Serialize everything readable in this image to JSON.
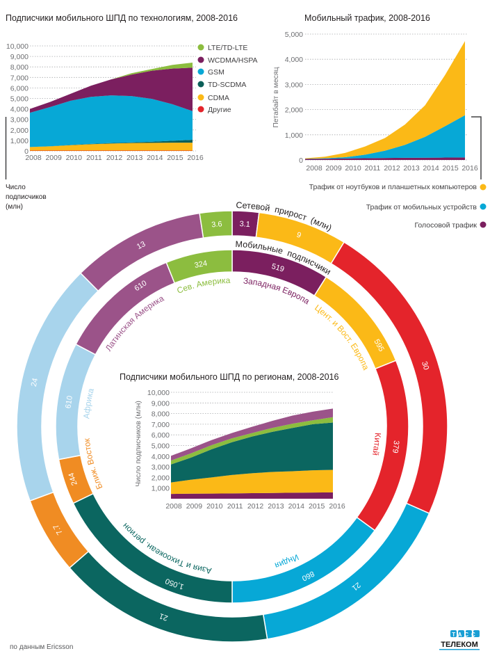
{
  "colors": {
    "lte": "#8cbd3f",
    "wcdma": "#7b1f5f",
    "gsm": "#07a8d6",
    "tdscdma": "#0b5f58",
    "cdma": "#fbb917",
    "other": "#e4242b",
    "laptop": "#fbb917",
    "mobile": "#07a8d6",
    "voice": "#7b1f5f",
    "w_europe": "#7b1f5f",
    "ce_europe": "#fbb917",
    "china": "#e4242b",
    "india": "#07a8d6",
    "apac": "#0b6660",
    "mideast": "#f08c23",
    "africa": "#a8d4ec",
    "latam": "#9b5389",
    "n_america": "#8cbd3f"
  },
  "chart_data": [
    {
      "type": "area",
      "stacked": true,
      "title": "Подписчики мобильного ШПД по технологиям, 2008-2016",
      "ylabel_lines": [
        "Число",
        "подписчиков",
        "(млн)"
      ],
      "categories": [
        "2008",
        "2009",
        "2010",
        "2011",
        "2012",
        "2013",
        "2014",
        "2015",
        "2016"
      ],
      "ylim": [
        0,
        10000
      ],
      "ytick_labels": [
        "0",
        "1,000",
        "2,000",
        "3,000",
        "4,000",
        "5,000",
        "6,000",
        "7,000",
        "8,000",
        "9,000",
        "10,000"
      ],
      "grid": true,
      "legend_placement": "right",
      "series": [
        {
          "name": "Другие",
          "color": "#e4242b",
          "values": [
            30,
            30,
            30,
            30,
            30,
            30,
            30,
            30,
            30
          ]
        },
        {
          "name": "CDMA",
          "color": "#fbb917",
          "values": [
            345,
            410,
            520,
            610,
            670,
            720,
            740,
            760,
            760
          ]
        },
        {
          "name": "TD-SCDMA",
          "color": "#0b5f58",
          "values": [
            0,
            10,
            20,
            30,
            50,
            65,
            110,
            180,
            270
          ]
        },
        {
          "name": "GSM",
          "color": "#07a8d6",
          "values": [
            3255,
            3730,
            4210,
            4480,
            4540,
            4405,
            4080,
            3480,
            2730
          ]
        },
        {
          "name": "WCDMA/HSPA",
          "color": "#7b1f5f",
          "values": [
            370,
            490,
            660,
            1060,
            1520,
            2050,
            2680,
            3390,
            4140
          ]
        },
        {
          "name": "LTE/TD-LTE",
          "color": "#8cbd3f",
          "values": [
            0,
            0,
            0,
            0,
            0,
            130,
            160,
            350,
            480
          ]
        }
      ]
    },
    {
      "type": "area",
      "stacked": true,
      "title": "Мобильный трафик, 2008-2016",
      "ylabel": "Петабайт в месяц",
      "categories": [
        "2008",
        "2009",
        "2010",
        "2011",
        "2012",
        "2013",
        "2014",
        "2015",
        "2016"
      ],
      "ylim": [
        0,
        5000
      ],
      "ytick_labels": [
        "0",
        "1,000",
        "2,000",
        "3,000",
        "4,000",
        "5,000"
      ],
      "grid": true,
      "legend_placement": "bottom-right",
      "series": [
        {
          "name": "Голосовой трафик",
          "color": "#7b1f5f",
          "values": [
            40,
            50,
            60,
            70,
            80,
            85,
            90,
            95,
            100
          ]
        },
        {
          "name": "Трафик от мобильных устройств",
          "color": "#07a8d6",
          "values": [
            10,
            20,
            50,
            140,
            290,
            515,
            830,
            1245,
            1680
          ]
        },
        {
          "name": "Трафик от ноутбуков и планшетных  компьютеров",
          "color": "#fbb917",
          "values": [
            15,
            60,
            170,
            325,
            505,
            810,
            1250,
            2030,
            2940
          ]
        }
      ]
    },
    {
      "type": "pie",
      "subtype": "donut-rings",
      "rings": [
        {
          "title": "Мобильные подписчики",
          "slices": [
            {
              "region": "Западная Европа",
              "label": "519",
              "value": 519,
              "color": "#7b1f5f"
            },
            {
              "region": "Цент. и Вост. Европа",
              "label": "595",
              "value": 595,
              "color": "#fbb917"
            },
            {
              "region": "Китай",
              "label": "379",
              "value": 379,
              "color": "#e4242b"
            },
            {
              "region": "Индия",
              "label": "860",
              "value": 860,
              "color": "#07a8d6"
            },
            {
              "region": "Азия и Тихоокеан. регион",
              "label": "1,050",
              "value": 1050,
              "color": "#0b6660"
            },
            {
              "region": "Ближ. Восток",
              "label": "244",
              "value": 244,
              "color": "#f08c23"
            },
            {
              "region": "Африка",
              "label": "610",
              "value": 610,
              "color": "#a8d4ec"
            },
            {
              "region": "Латинская Америка",
              "label": "610",
              "value": 610,
              "color": "#9b5389"
            },
            {
              "region": "Сев. Америка",
              "label": "324",
              "value": 324,
              "color": "#8cbd3f"
            }
          ]
        },
        {
          "title": "Сетевой прирост (млн)",
          "slices": [
            {
              "label": "3.1",
              "value": 3.1,
              "color": "#7b1f5f"
            },
            {
              "label": "9",
              "value": 9,
              "color": "#fbb917"
            },
            {
              "label": "30",
              "value": 30,
              "color": "#e4242b"
            },
            {
              "label": "21",
              "value": 21,
              "color": "#07a8d6"
            },
            {
              "label": "21",
              "value": 21,
              "color": "#0b6660"
            },
            {
              "label": "7.7",
              "value": 7.7,
              "color": "#f08c23"
            },
            {
              "label": "24",
              "value": 24,
              "color": "#a8d4ec"
            },
            {
              "label": "13",
              "value": 13,
              "color": "#9b5389"
            },
            {
              "label": "3.6",
              "value": 3.6,
              "color": "#8cbd3f"
            }
          ]
        }
      ]
    },
    {
      "type": "area",
      "stacked": true,
      "title": "Подписчики мобильного ШПД по регионам, 2008-2016",
      "ylabel": "Число подписчиков (млн)",
      "categories": [
        "2008",
        "2009",
        "2010",
        "2011",
        "2012",
        "2013",
        "2014",
        "2015",
        "2016"
      ],
      "ylim": [
        0,
        10000
      ],
      "ytick_labels": [
        "1,000",
        "2,000",
        "3,000",
        "4,000",
        "5,000",
        "6,000",
        "7,000",
        "8,000",
        "9,000",
        "10,000"
      ],
      "grid": true,
      "series": [
        {
          "color": "#7b1f5f",
          "values": [
            450,
            470,
            480,
            500,
            520,
            540,
            560,
            580,
            600
          ]
        },
        {
          "color": "#fbb917",
          "values": [
            1080,
            1320,
            1520,
            1730,
            1870,
            1980,
            2020,
            2090,
            2110
          ]
        },
        {
          "color": "#0b6660",
          "values": [
            1690,
            2080,
            2640,
            3070,
            3450,
            3760,
            4070,
            4330,
            4450
          ]
        },
        {
          "color": "#8cbd3f",
          "values": [
            370,
            400,
            390,
            370,
            330,
            370,
            400,
            370,
            500
          ]
        },
        {
          "color": "#9b5389",
          "values": [
            440,
            480,
            480,
            500,
            590,
            660,
            760,
            810,
            810
          ]
        }
      ]
    }
  ],
  "footer": {
    "source": "по данным Ericsson"
  },
  "logo": {
    "top": "ТАСС",
    "bottom": "ТЕЛЕКОМ"
  }
}
